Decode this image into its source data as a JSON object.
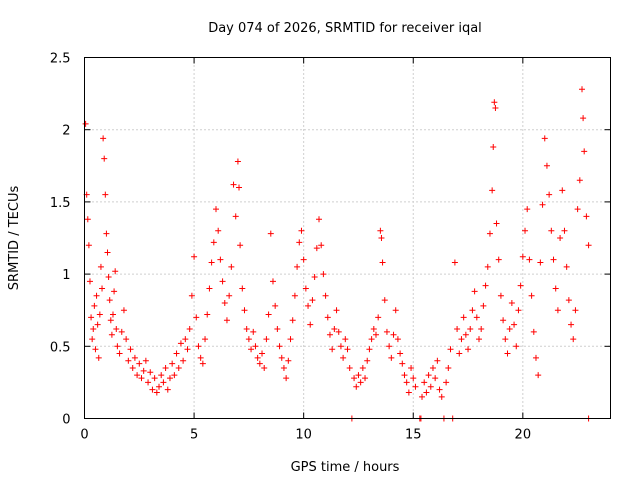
{
  "chart_data": {
    "type": "scatter",
    "title": "Day 074 of 2026, SRMTID for receiver iqal",
    "xlabel": "GPS time / hours",
    "ylabel": "SRMTID / TECUs",
    "xlim": [
      0,
      24
    ],
    "ylim": [
      0,
      2.5
    ],
    "xticks": [
      0,
      5,
      10,
      15,
      20
    ],
    "xtick_labels": [
      "0",
      "5",
      "10",
      "15",
      "20"
    ],
    "yticks": [
      0,
      0.5,
      1,
      1.5,
      2,
      2.5
    ],
    "ytick_labels": [
      "0",
      "0.5",
      "1",
      "1.5",
      "2",
      "2.5"
    ],
    "grid": true,
    "marker": "plus",
    "color": "#ff0000",
    "series": [
      {
        "name": "SRMTID",
        "points": [
          [
            0.05,
            2.04
          ],
          [
            0.1,
            1.55
          ],
          [
            0.15,
            1.38
          ],
          [
            0.2,
            1.2
          ],
          [
            0.25,
            0.95
          ],
          [
            0.3,
            0.7
          ],
          [
            0.35,
            0.55
          ],
          [
            0.4,
            0.62
          ],
          [
            0.45,
            0.78
          ],
          [
            0.5,
            0.48
          ],
          [
            0.55,
            0.85
          ],
          [
            0.6,
            0.65
          ],
          [
            0.65,
            0.42
          ],
          [
            0.7,
            0.72
          ],
          [
            0.75,
            1.05
          ],
          [
            0.8,
            0.9
          ],
          [
            0.85,
            1.94
          ],
          [
            0.9,
            1.8
          ],
          [
            0.95,
            1.55
          ],
          [
            1.0,
            1.28
          ],
          [
            1.05,
            1.15
          ],
          [
            1.1,
            0.98
          ],
          [
            1.15,
            0.82
          ],
          [
            1.2,
            0.68
          ],
          [
            1.25,
            0.58
          ],
          [
            1.3,
            0.72
          ],
          [
            1.35,
            0.88
          ],
          [
            1.4,
            1.02
          ],
          [
            1.45,
            0.62
          ],
          [
            1.5,
            0.5
          ],
          [
            1.6,
            0.45
          ],
          [
            1.7,
            0.6
          ],
          [
            1.8,
            0.75
          ],
          [
            1.9,
            0.55
          ],
          [
            2.0,
            0.4
          ],
          [
            2.1,
            0.48
          ],
          [
            2.2,
            0.35
          ],
          [
            2.3,
            0.42
          ],
          [
            2.4,
            0.3
          ],
          [
            2.5,
            0.38
          ],
          [
            2.6,
            0.28
          ],
          [
            2.7,
            0.33
          ],
          [
            2.8,
            0.4
          ],
          [
            2.9,
            0.25
          ],
          [
            3.0,
            0.32
          ],
          [
            3.1,
            0.2
          ],
          [
            3.2,
            0.28
          ],
          [
            3.3,
            0.18
          ],
          [
            3.4,
            0.22
          ],
          [
            3.5,
            0.3
          ],
          [
            3.6,
            0.25
          ],
          [
            3.7,
            0.35
          ],
          [
            3.8,
            0.2
          ],
          [
            3.9,
            0.28
          ],
          [
            4.0,
            0.38
          ],
          [
            4.1,
            0.3
          ],
          [
            4.2,
            0.45
          ],
          [
            4.3,
            0.35
          ],
          [
            4.4,
            0.52
          ],
          [
            4.5,
            0.4
          ],
          [
            4.6,
            0.55
          ],
          [
            4.7,
            0.48
          ],
          [
            4.8,
            0.62
          ],
          [
            4.9,
            0.85
          ],
          [
            5.0,
            1.12
          ],
          [
            5.1,
            0.7
          ],
          [
            5.2,
            0.5
          ],
          [
            5.3,
            0.42
          ],
          [
            5.4,
            0.38
          ],
          [
            5.5,
            0.55
          ],
          [
            5.6,
            0.72
          ],
          [
            5.7,
            0.9
          ],
          [
            5.8,
            1.08
          ],
          [
            5.9,
            1.22
          ],
          [
            6.0,
            1.45
          ],
          [
            6.1,
            1.3
          ],
          [
            6.2,
            1.1
          ],
          [
            6.3,
            0.95
          ],
          [
            6.4,
            0.8
          ],
          [
            6.5,
            0.68
          ],
          [
            6.6,
            0.85
          ],
          [
            6.7,
            1.05
          ],
          [
            6.8,
            1.62
          ],
          [
            6.9,
            1.4
          ],
          [
            7.0,
            1.78
          ],
          [
            7.05,
            1.6
          ],
          [
            7.1,
            1.2
          ],
          [
            7.2,
            0.9
          ],
          [
            7.3,
            0.75
          ],
          [
            7.4,
            0.62
          ],
          [
            7.5,
            0.55
          ],
          [
            7.6,
            0.48
          ],
          [
            7.7,
            0.6
          ],
          [
            7.8,
            0.5
          ],
          [
            7.9,
            0.42
          ],
          [
            8.0,
            0.38
          ],
          [
            8.1,
            0.45
          ],
          [
            8.2,
            0.35
          ],
          [
            8.3,
            0.55
          ],
          [
            8.4,
            0.72
          ],
          [
            8.5,
            1.28
          ],
          [
            8.6,
            0.95
          ],
          [
            8.7,
            0.78
          ],
          [
            8.8,
            0.62
          ],
          [
            8.9,
            0.5
          ],
          [
            9.0,
            0.42
          ],
          [
            9.1,
            0.35
          ],
          [
            9.2,
            0.28
          ],
          [
            9.3,
            0.4
          ],
          [
            9.4,
            0.55
          ],
          [
            9.5,
            0.68
          ],
          [
            9.6,
            0.85
          ],
          [
            9.7,
            1.05
          ],
          [
            9.8,
            1.22
          ],
          [
            9.9,
            1.3
          ],
          [
            10.0,
            1.1
          ],
          [
            10.1,
            0.9
          ],
          [
            10.2,
            0.78
          ],
          [
            10.3,
            0.65
          ],
          [
            10.4,
            0.82
          ],
          [
            10.5,
            0.98
          ],
          [
            10.6,
            1.18
          ],
          [
            10.7,
            1.38
          ],
          [
            10.8,
            1.2
          ],
          [
            10.9,
            1.0
          ],
          [
            11.0,
            0.85
          ],
          [
            11.1,
            0.7
          ],
          [
            11.2,
            0.58
          ],
          [
            11.3,
            0.48
          ],
          [
            11.4,
            0.62
          ],
          [
            11.5,
            0.75
          ],
          [
            11.6,
            0.6
          ],
          [
            11.7,
            0.5
          ],
          [
            11.8,
            0.42
          ],
          [
            11.9,
            0.55
          ],
          [
            12.0,
            0.48
          ],
          [
            12.1,
            0.35
          ],
          [
            12.2,
            0.0
          ],
          [
            12.3,
            0.28
          ],
          [
            12.4,
            0.22
          ],
          [
            12.5,
            0.3
          ],
          [
            12.6,
            0.25
          ],
          [
            12.7,
            0.35
          ],
          [
            12.8,
            0.28
          ],
          [
            12.9,
            0.4
          ],
          [
            13.0,
            0.48
          ],
          [
            13.1,
            0.55
          ],
          [
            13.2,
            0.62
          ],
          [
            13.3,
            0.58
          ],
          [
            13.4,
            0.7
          ],
          [
            13.5,
            1.3
          ],
          [
            13.55,
            1.25
          ],
          [
            13.6,
            1.08
          ],
          [
            13.7,
            0.82
          ],
          [
            13.8,
            0.6
          ],
          [
            13.9,
            0.5
          ],
          [
            14.0,
            0.42
          ],
          [
            14.1,
            0.58
          ],
          [
            14.2,
            0.75
          ],
          [
            14.3,
            0.55
          ],
          [
            14.4,
            0.45
          ],
          [
            14.5,
            0.38
          ],
          [
            14.6,
            0.3
          ],
          [
            14.7,
            0.25
          ],
          [
            14.8,
            0.18
          ],
          [
            14.9,
            0.35
          ],
          [
            15.0,
            0.28
          ],
          [
            15.1,
            0.22
          ],
          [
            15.3,
            0.0
          ],
          [
            15.35,
            0.0
          ],
          [
            15.4,
            0.15
          ],
          [
            15.5,
            0.25
          ],
          [
            15.6,
            0.18
          ],
          [
            15.7,
            0.3
          ],
          [
            15.8,
            0.22
          ],
          [
            15.9,
            0.35
          ],
          [
            16.0,
            0.28
          ],
          [
            16.1,
            0.4
          ],
          [
            16.2,
            0.2
          ],
          [
            16.3,
            0.15
          ],
          [
            16.4,
            0.0
          ],
          [
            16.5,
            0.25
          ],
          [
            16.6,
            0.35
          ],
          [
            16.7,
            0.48
          ],
          [
            16.8,
            0.0
          ],
          [
            16.9,
            1.08
          ],
          [
            17.0,
            0.62
          ],
          [
            17.1,
            0.45
          ],
          [
            17.2,
            0.55
          ],
          [
            17.3,
            0.7
          ],
          [
            17.4,
            0.58
          ],
          [
            17.5,
            0.48
          ],
          [
            17.6,
            0.62
          ],
          [
            17.7,
            0.75
          ],
          [
            17.8,
            0.88
          ],
          [
            17.9,
            0.7
          ],
          [
            18.0,
            0.55
          ],
          [
            18.1,
            0.62
          ],
          [
            18.2,
            0.78
          ],
          [
            18.3,
            0.92
          ],
          [
            18.4,
            1.05
          ],
          [
            18.5,
            1.28
          ],
          [
            18.6,
            1.58
          ],
          [
            18.65,
            1.88
          ],
          [
            18.7,
            2.19
          ],
          [
            18.75,
            2.15
          ],
          [
            18.8,
            1.35
          ],
          [
            18.9,
            1.1
          ],
          [
            19.0,
            0.85
          ],
          [
            19.1,
            0.68
          ],
          [
            19.2,
            0.55
          ],
          [
            19.3,
            0.45
          ],
          [
            19.4,
            0.62
          ],
          [
            19.5,
            0.8
          ],
          [
            19.6,
            0.65
          ],
          [
            19.7,
            0.5
          ],
          [
            19.8,
            0.75
          ],
          [
            19.9,
            0.92
          ],
          [
            20.0,
            1.12
          ],
          [
            20.1,
            1.3
          ],
          [
            20.2,
            1.45
          ],
          [
            20.3,
            1.1
          ],
          [
            20.4,
            0.85
          ],
          [
            20.5,
            0.6
          ],
          [
            20.6,
            0.42
          ],
          [
            20.7,
            0.3
          ],
          [
            20.8,
            1.08
          ],
          [
            20.9,
            1.48
          ],
          [
            21.0,
            1.94
          ],
          [
            21.1,
            1.75
          ],
          [
            21.2,
            1.55
          ],
          [
            21.3,
            1.3
          ],
          [
            21.4,
            1.1
          ],
          [
            21.5,
            0.9
          ],
          [
            21.6,
            0.75
          ],
          [
            21.7,
            1.25
          ],
          [
            21.8,
            1.58
          ],
          [
            21.9,
            1.3
          ],
          [
            22.0,
            1.05
          ],
          [
            22.1,
            0.82
          ],
          [
            22.2,
            0.65
          ],
          [
            22.3,
            0.55
          ],
          [
            22.4,
            0.75
          ],
          [
            22.5,
            1.45
          ],
          [
            22.6,
            1.65
          ],
          [
            22.7,
            2.28
          ],
          [
            22.75,
            2.08
          ],
          [
            22.8,
            1.85
          ],
          [
            22.9,
            1.4
          ],
          [
            23.0,
            1.2
          ],
          [
            23.0,
            0.0
          ]
        ]
      }
    ]
  }
}
